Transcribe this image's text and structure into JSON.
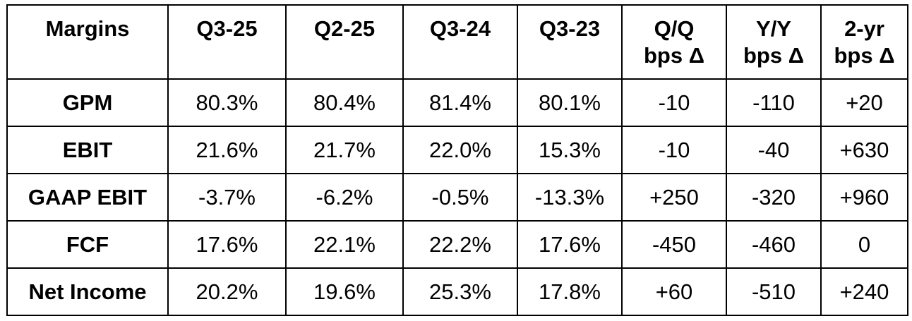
{
  "table": {
    "header": {
      "label": "Margins",
      "columns": [
        {
          "line1": "Q3-25",
          "line2": ""
        },
        {
          "line1": "Q2-25",
          "line2": ""
        },
        {
          "line1": "Q3-24",
          "line2": ""
        },
        {
          "line1": "Q3-23",
          "line2": ""
        },
        {
          "line1": "Q/Q",
          "line2": "bps Δ"
        },
        {
          "line1": "Y/Y",
          "line2": "bps Δ"
        },
        {
          "line1": "2-yr",
          "line2": "bps Δ"
        }
      ]
    },
    "rows": [
      {
        "label": "GPM",
        "cells": [
          "80.3%",
          "80.4%",
          "81.4%",
          "80.1%",
          "-10",
          "-110",
          "+20"
        ]
      },
      {
        "label": "EBIT",
        "cells": [
          "21.6%",
          "21.7%",
          "22.0%",
          "15.3%",
          "-10",
          "-40",
          "+630"
        ]
      },
      {
        "label": "GAAP EBIT",
        "cells": [
          "-3.7%",
          "-6.2%",
          "-0.5%",
          "-13.3%",
          "+250",
          "-320",
          "+960"
        ]
      },
      {
        "label": "FCF",
        "cells": [
          "17.6%",
          "22.1%",
          "22.2%",
          "17.6%",
          "-450",
          "-460",
          "0"
        ]
      },
      {
        "label": "Net Income",
        "cells": [
          "20.2%",
          "19.6%",
          "25.3%",
          "17.8%",
          "+60",
          "-510",
          "+240"
        ]
      }
    ]
  }
}
